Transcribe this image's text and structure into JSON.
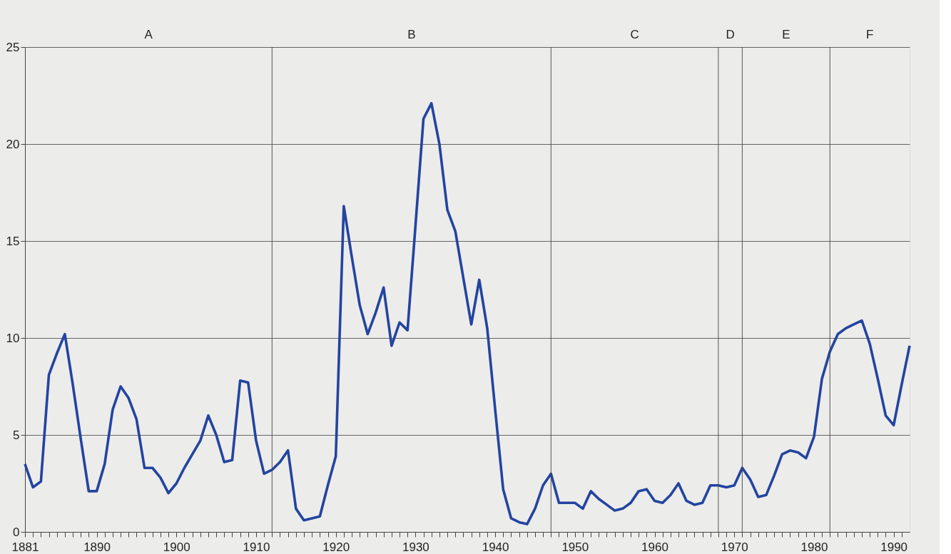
{
  "chart_data": {
    "type": "line",
    "x": [
      1881,
      1882,
      1883,
      1884,
      1885,
      1886,
      1887,
      1888,
      1889,
      1890,
      1891,
      1892,
      1893,
      1894,
      1895,
      1896,
      1897,
      1898,
      1899,
      1900,
      1901,
      1902,
      1903,
      1904,
      1905,
      1906,
      1907,
      1908,
      1909,
      1910,
      1911,
      1912,
      1913,
      1914,
      1915,
      1916,
      1917,
      1918,
      1919,
      1920,
      1921,
      1922,
      1923,
      1924,
      1925,
      1926,
      1927,
      1928,
      1929,
      1930,
      1931,
      1932,
      1933,
      1934,
      1935,
      1936,
      1937,
      1938,
      1939,
      1940,
      1941,
      1942,
      1943,
      1944,
      1945,
      1946,
      1947,
      1948,
      1949,
      1950,
      1951,
      1952,
      1953,
      1954,
      1955,
      1956,
      1957,
      1958,
      1959,
      1960,
      1961,
      1962,
      1963,
      1964,
      1965,
      1966,
      1967,
      1968,
      1969,
      1970,
      1971,
      1972,
      1973,
      1974,
      1975,
      1976,
      1977,
      1978,
      1979,
      1980,
      1981,
      1982,
      1983,
      1984,
      1985,
      1986,
      1987,
      1988,
      1989,
      1990,
      1991,
      1992
    ],
    "series": [
      {
        "color": "#2344a0",
        "values": [
          3.5,
          2.3,
          2.6,
          8.1,
          9.2,
          10.2,
          7.6,
          4.8,
          2.1,
          2.1,
          3.5,
          6.3,
          7.5,
          6.9,
          5.8,
          3.3,
          3.3,
          2.8,
          2.0,
          2.5,
          3.3,
          4.0,
          4.7,
          6.0,
          5.0,
          3.6,
          3.7,
          7.8,
          7.7,
          4.7,
          3.0,
          3.2,
          3.6,
          4.2,
          1.2,
          0.6,
          0.7,
          0.8,
          2.4,
          3.9,
          16.8,
          14.2,
          11.7,
          10.2,
          11.3,
          12.6,
          9.6,
          10.8,
          10.4,
          15.8,
          21.3,
          22.1,
          20.0,
          16.6,
          15.5,
          13.1,
          10.7,
          13.0,
          10.5,
          6.3,
          2.2,
          0.7,
          0.5,
          0.4,
          1.2,
          2.4,
          3.0,
          1.5,
          1.5,
          1.5,
          1.2,
          2.1,
          1.7,
          1.4,
          1.1,
          1.2,
          1.5,
          2.1,
          2.2,
          1.6,
          1.5,
          1.9,
          2.5,
          1.6,
          1.4,
          1.5,
          2.4,
          2.4,
          2.3,
          2.4,
          3.3,
          2.7,
          1.8,
          1.9,
          2.9,
          4.0,
          4.2,
          4.1,
          3.8,
          4.9,
          7.9,
          9.3,
          10.2,
          10.5,
          10.7,
          10.9,
          9.7,
          7.9,
          6.0,
          5.5,
          7.6,
          9.6
        ]
      }
    ],
    "xlim": [
      1881,
      1992
    ],
    "xticks": [
      1881,
      {
        "value": 1882,
        "label": null
      },
      {
        "value": 1883,
        "label": null
      },
      {
        "value": 1884,
        "label": null
      },
      {
        "value": 1885,
        "label": null
      },
      {
        "value": 1886,
        "label": null
      },
      {
        "value": 1887,
        "label": null
      },
      {
        "value": 1888,
        "label": null
      },
      {
        "value": 1889,
        "label": null
      },
      1890,
      {
        "value": 1891,
        "label": null
      },
      {
        "value": 1892,
        "label": null
      },
      {
        "value": 1893,
        "label": null
      },
      {
        "value": 1894,
        "label": null
      },
      {
        "value": 1895,
        "label": null
      },
      {
        "value": 1896,
        "label": null
      },
      {
        "value": 1897,
        "label": null
      },
      {
        "value": 1898,
        "label": null
      },
      {
        "value": 1899,
        "label": null
      },
      1900,
      {
        "value": 1901,
        "label": null
      },
      {
        "value": 1902,
        "label": null
      },
      {
        "value": 1903,
        "label": null
      },
      {
        "value": 1904,
        "label": null
      },
      {
        "value": 1905,
        "label": null
      },
      {
        "value": 1906,
        "label": null
      },
      {
        "value": 1907,
        "label": null
      },
      {
        "value": 1908,
        "label": null
      },
      {
        "value": 1909,
        "label": null
      },
      1910,
      {
        "value": 1911,
        "label": null
      },
      {
        "value": 1912,
        "label": null
      },
      {
        "value": 1913,
        "label": null
      },
      {
        "value": 1914,
        "label": null
      },
      {
        "value": 1915,
        "label": null
      },
      {
        "value": 1916,
        "label": null
      },
      {
        "value": 1917,
        "label": null
      },
      {
        "value": 1918,
        "label": null
      },
      {
        "value": 1919,
        "label": null
      },
      1920,
      {
        "value": 1921,
        "label": null
      },
      {
        "value": 1922,
        "label": null
      },
      {
        "value": 1923,
        "label": null
      },
      {
        "value": 1924,
        "label": null
      },
      {
        "value": 1925,
        "label": null
      },
      {
        "value": 1926,
        "label": null
      },
      {
        "value": 1927,
        "label": null
      },
      {
        "value": 1928,
        "label": null
      },
      {
        "value": 1929,
        "label": null
      },
      1930,
      {
        "value": 1931,
        "label": null
      },
      {
        "value": 1932,
        "label": null
      },
      {
        "value": 1933,
        "label": null
      },
      {
        "value": 1934,
        "label": null
      },
      {
        "value": 1935,
        "label": null
      },
      {
        "value": 1936,
        "label": null
      },
      {
        "value": 1937,
        "label": null
      },
      {
        "value": 1938,
        "label": null
      },
      {
        "value": 1939,
        "label": null
      },
      1940,
      {
        "value": 1941,
        "label": null
      },
      {
        "value": 1942,
        "label": null
      },
      {
        "value": 1943,
        "label": null
      },
      {
        "value": 1944,
        "label": null
      },
      {
        "value": 1945,
        "label": null
      },
      {
        "value": 1946,
        "label": null
      },
      {
        "value": 1947,
        "label": null
      },
      {
        "value": 1948,
        "label": null
      },
      {
        "value": 1949,
        "label": null
      },
      1950,
      {
        "value": 1951,
        "label": null
      },
      {
        "value": 1952,
        "label": null
      },
      {
        "value": 1953,
        "label": null
      },
      {
        "value": 1954,
        "label": null
      },
      {
        "value": 1955,
        "label": null
      },
      {
        "value": 1956,
        "label": null
      },
      {
        "value": 1957,
        "label": null
      },
      {
        "value": 1958,
        "label": null
      },
      {
        "value": 1959,
        "label": null
      },
      1960,
      {
        "value": 1961,
        "label": null
      },
      {
        "value": 1962,
        "label": null
      },
      {
        "value": 1963,
        "label": null
      },
      {
        "value": 1964,
        "label": null
      },
      {
        "value": 1965,
        "label": null
      },
      {
        "value": 1966,
        "label": null
      },
      {
        "value": 1967,
        "label": null
      },
      {
        "value": 1968,
        "label": null
      },
      {
        "value": 1969,
        "label": null
      },
      1970,
      {
        "value": 1971,
        "label": null
      },
      {
        "value": 1972,
        "label": null
      },
      {
        "value": 1973,
        "label": null
      },
      {
        "value": 1974,
        "label": null
      },
      {
        "value": 1975,
        "label": null
      },
      {
        "value": 1976,
        "label": null
      },
      {
        "value": 1977,
        "label": null
      },
      {
        "value": 1978,
        "label": null
      },
      {
        "value": 1979,
        "label": null
      },
      1980,
      {
        "value": 1981,
        "label": null
      },
      {
        "value": 1982,
        "label": null
      },
      {
        "value": 1983,
        "label": null
      },
      {
        "value": 1984,
        "label": null
      },
      {
        "value": 1985,
        "label": null
      },
      {
        "value": 1986,
        "label": null
      },
      {
        "value": 1987,
        "label": null
      },
      {
        "value": 1988,
        "label": null
      },
      {
        "value": 1989,
        "label": null
      },
      1990,
      {
        "value": 1991,
        "label": null
      }
    ],
    "ylim": [
      0,
      25
    ],
    "yticks": [
      0,
      5,
      10,
      15,
      20,
      25
    ],
    "ref_lines": [
      {
        "axis": "x",
        "value": 1912
      },
      {
        "axis": "x",
        "value": 1947
      },
      {
        "axis": "x",
        "value": 1968
      },
      {
        "axis": "x",
        "value": 1971
      },
      {
        "axis": "x",
        "value": 1982
      }
    ],
    "annotations": [
      "A",
      "B",
      "C",
      "D",
      "E",
      "F"
    ],
    "grid": "y",
    "legend": false,
    "marker": "none",
    "line_style": "solid"
  }
}
